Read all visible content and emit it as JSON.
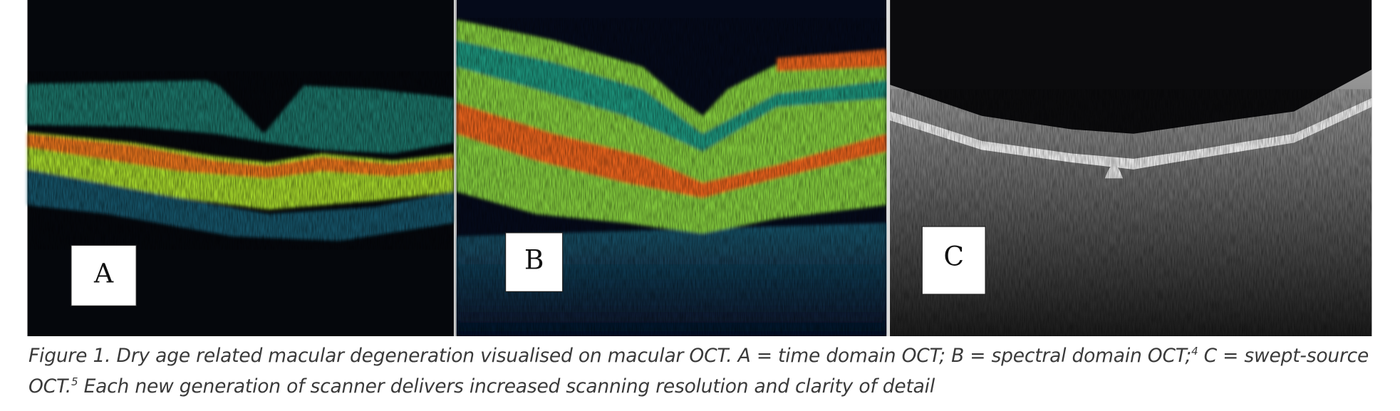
{
  "figure": {
    "panels": [
      {
        "label": "A"
      },
      {
        "label": "B"
      },
      {
        "label": "C"
      }
    ],
    "caption": {
      "parts": [
        "Figure 1. Dry age related macular degeneration visualised on macular OCT. A = time domain OCT; B =  spectral domain OCT;",
        "4",
        " C = swept-source OCT.",
        "5",
        " Each new generation of scanner delivers increased scanning resolution and clarity of detail"
      ]
    }
  }
}
